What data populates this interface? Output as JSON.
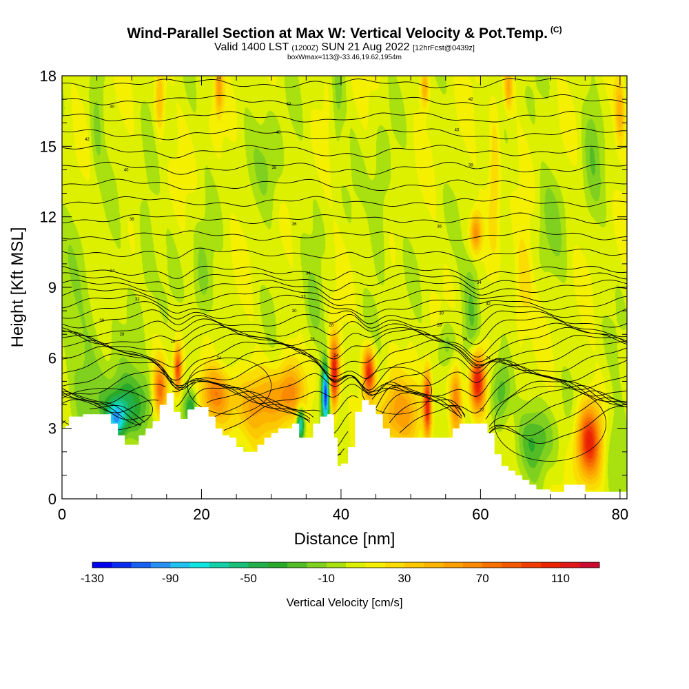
{
  "chart_data": {
    "type": "heatmap",
    "title": "Wind-Parallel Section at Max W: Vertical Velocity & Pot.Temp.",
    "title_badge": "(C)",
    "subtitle_prefix": "Valid 1400 LST",
    "subtitle_utc": "(1200Z)",
    "subtitle_date": "SUN 21 Aug 2022",
    "subtitle_fcst": "[12hrFcst@0439z]",
    "info_line": "boxWmax=113@-33.46,19.62,1954m",
    "xlabel": "Distance [nm]",
    "ylabel": "Height [Kft MSL]",
    "xlim": [
      0,
      81
    ],
    "ylim": [
      0,
      18
    ],
    "x_ticks": [
      0,
      20,
      40,
      60,
      80
    ],
    "y_ticks": [
      0,
      3,
      6,
      9,
      12,
      15,
      18
    ],
    "colorbar": {
      "title": "Vertical Velocity [cm/s]",
      "min": -130,
      "max": 130,
      "step": 10,
      "tick_values": [
        "-130",
        "-90",
        "-50",
        "-10",
        "30",
        "70",
        "110"
      ],
      "colors": [
        "#0000ee",
        "#0a2bf0",
        "#1860f2",
        "#2490f4",
        "#21c2f0",
        "#10e4e0",
        "#14d0a8",
        "#18c07a",
        "#22b04a",
        "#2aa82a",
        "#52bc26",
        "#80d020",
        "#a8e010",
        "#ddf000",
        "#f4f000",
        "#fadc00",
        "#fcc800",
        "#fcb400",
        "#fca000",
        "#fc8a00",
        "#f87000",
        "#f45800",
        "#f03c00",
        "#ea2400",
        "#e01818",
        "#cc0a30"
      ]
    },
    "terrain_kft": [
      [
        0,
        3.0
      ],
      [
        0.5,
        3.1
      ],
      [
        1,
        3.5
      ],
      [
        3,
        3.6
      ],
      [
        6,
        3.6
      ],
      [
        7,
        3.2
      ],
      [
        8,
        2.7
      ],
      [
        9,
        2.3
      ],
      [
        10,
        2.3
      ],
      [
        11,
        2.7
      ],
      [
        12,
        3.0
      ],
      [
        13,
        3.3
      ],
      [
        14,
        4.0
      ],
      [
        15,
        4.5
      ],
      [
        15.5,
        4.5
      ],
      [
        16,
        3.7
      ],
      [
        17,
        3.4
      ],
      [
        18,
        3.8
      ],
      [
        19,
        3.9
      ],
      [
        20,
        3.9
      ],
      [
        21,
        3.5
      ],
      [
        22,
        3.0
      ],
      [
        23,
        2.7
      ],
      [
        24,
        2.6
      ],
      [
        25,
        2.2
      ],
      [
        26,
        2.0
      ],
      [
        27,
        2.0
      ],
      [
        28,
        2.3
      ],
      [
        29,
        2.6
      ],
      [
        30,
        2.8
      ],
      [
        31,
        3.0
      ],
      [
        32,
        3.0
      ],
      [
        33,
        3.2
      ],
      [
        34,
        2.6
      ],
      [
        35,
        2.6
      ],
      [
        36,
        3.2
      ],
      [
        37,
        3.5
      ],
      [
        38,
        3.6
      ],
      [
        39,
        2.6
      ],
      [
        39.5,
        1.4
      ],
      [
        40,
        1.5
      ],
      [
        41,
        2.2
      ],
      [
        42,
        3.7
      ],
      [
        43,
        4.2
      ],
      [
        44,
        4.0
      ],
      [
        45,
        3.6
      ],
      [
        46,
        3.0
      ],
      [
        47,
        2.6
      ],
      [
        50,
        2.6
      ],
      [
        52,
        2.6
      ],
      [
        54,
        2.6
      ],
      [
        55,
        2.6
      ],
      [
        56,
        3.0
      ],
      [
        57,
        3.2
      ],
      [
        60,
        3.2
      ],
      [
        61,
        2.8
      ],
      [
        62,
        1.9
      ],
      [
        63,
        1.4
      ],
      [
        64,
        1.2
      ],
      [
        65,
        1.0
      ],
      [
        66,
        0.8
      ],
      [
        67,
        0.6
      ],
      [
        68,
        0.4
      ],
      [
        70,
        0.3
      ],
      [
        71,
        0.3
      ],
      [
        72,
        0.6
      ],
      [
        74,
        0.6
      ],
      [
        75,
        0.3
      ],
      [
        78,
        0.3
      ],
      [
        80,
        0.3
      ],
      [
        81,
        0.3
      ]
    ],
    "updrafts": [
      {
        "x": 75.5,
        "z": 2.4,
        "sx": 1.2,
        "sz": 1.1,
        "w": 100
      },
      {
        "x": 59.6,
        "z": 5.0,
        "sx": 0.8,
        "sz": 0.9,
        "w": 115
      },
      {
        "x": 59.3,
        "z": 11.3,
        "sx": 0.6,
        "sz": 0.6,
        "w": 60
      },
      {
        "x": 58.8,
        "z": 8.5,
        "sx": 0.9,
        "sz": 1.8,
        "w": -25
      },
      {
        "x": 39.0,
        "z": 5.3,
        "sx": 0.5,
        "sz": 1.0,
        "w": 118
      },
      {
        "x": 44.0,
        "z": 5.4,
        "sx": 0.6,
        "sz": 0.7,
        "w": 100
      },
      {
        "x": 52.4,
        "z": 4.0,
        "sx": 0.4,
        "sz": 1.0,
        "w": 95
      },
      {
        "x": 48.5,
        "z": 3.6,
        "sx": 2.5,
        "sz": 1.0,
        "w": 45
      },
      {
        "x": 56.5,
        "z": 4.2,
        "sx": 0.6,
        "sz": 1.0,
        "w": 60
      },
      {
        "x": 28.0,
        "z": 4.0,
        "sx": 3.5,
        "sz": 1.0,
        "w": 40
      },
      {
        "x": 22.0,
        "z": 4.5,
        "sx": 1.5,
        "sz": 0.8,
        "w": 55
      },
      {
        "x": 14.0,
        "z": 4.6,
        "sx": 0.7,
        "sz": 0.8,
        "w": 75
      },
      {
        "x": 16.6,
        "z": 5.5,
        "sx": 0.4,
        "sz": 0.7,
        "w": 90
      },
      {
        "x": 10.0,
        "z": 4.0,
        "sx": 3.0,
        "sz": 1.0,
        "w": -40
      },
      {
        "x": 7.8,
        "z": 3.4,
        "sx": 1.0,
        "sz": 0.6,
        "w": -80
      },
      {
        "x": 37.8,
        "z": 4.4,
        "sx": 0.4,
        "sz": 0.9,
        "w": -120
      },
      {
        "x": 34.2,
        "z": 3.2,
        "sx": 0.4,
        "sz": 0.5,
        "w": -90
      },
      {
        "x": 32.5,
        "z": 4.5,
        "sx": 1.5,
        "sz": 0.8,
        "w": 45
      },
      {
        "x": 18.5,
        "z": 3.9,
        "sx": 0.6,
        "sz": 0.5,
        "w": -45
      },
      {
        "x": 3.0,
        "z": 6.5,
        "sx": 3.0,
        "sz": 3.0,
        "w": -15
      },
      {
        "x": 63.0,
        "z": 4.5,
        "sx": 1.0,
        "sz": 1.0,
        "w": -40
      },
      {
        "x": 68.0,
        "z": 2.5,
        "sx": 2.0,
        "sz": 1.0,
        "w": -30
      },
      {
        "x": 79.0,
        "z": 2.0,
        "sx": 1.0,
        "sz": 1.5,
        "w": -20
      },
      {
        "x": 66.0,
        "z": 9.0,
        "sx": 1.0,
        "sz": 1.5,
        "w": 25
      },
      {
        "x": 62.0,
        "z": 14.0,
        "sx": 0.6,
        "sz": 2.0,
        "w": 30
      },
      {
        "x": 14.0,
        "z": 17.0,
        "sx": 0.5,
        "sz": 1.0,
        "w": 40
      },
      {
        "x": 22.5,
        "z": 17.5,
        "sx": 0.4,
        "sz": 0.8,
        "w": 45
      },
      {
        "x": 52.0,
        "z": 17.5,
        "sx": 0.4,
        "sz": 0.6,
        "w": 45
      },
      {
        "x": 64.0,
        "z": 17.5,
        "sx": 0.4,
        "sz": 0.7,
        "w": 40
      },
      {
        "x": 80.0,
        "z": 16.5,
        "sx": 0.5,
        "sz": 1.0,
        "w": 40
      },
      {
        "x": 39.5,
        "z": 17.0,
        "sx": 0.6,
        "sz": 1.5,
        "w": -20
      },
      {
        "x": 5.0,
        "z": 16.0,
        "sx": 0.7,
        "sz": 1.5,
        "w": -20
      },
      {
        "x": 30.0,
        "z": 14.0,
        "sx": 1.5,
        "sz": 1.5,
        "w": -18
      },
      {
        "x": 45.5,
        "z": 12.0,
        "sx": 1.0,
        "sz": 2.0,
        "w": -20
      },
      {
        "x": 70.0,
        "z": 12.0,
        "sx": 1.5,
        "sz": 1.5,
        "w": -15
      },
      {
        "x": 76.0,
        "z": 15.0,
        "sx": 1.0,
        "sz": 2.0,
        "w": -18
      },
      {
        "x": 12.0,
        "z": 11.0,
        "sx": 1.0,
        "sz": 2.0,
        "w": -18
      },
      {
        "x": 20.0,
        "z": 9.0,
        "sx": 1.0,
        "sz": 1.5,
        "w": -22
      },
      {
        "x": 36.0,
        "z": 8.0,
        "sx": 1.0,
        "sz": 1.2,
        "w": -20
      },
      {
        "x": 55.0,
        "z": 6.5,
        "sx": 1.0,
        "sz": 0.8,
        "w": -25
      }
    ],
    "contour_labels": [
      {
        "x": 22.5,
        "z": 17.9,
        "text": "44"
      },
      {
        "x": 32.5,
        "z": 16.8,
        "text": "42"
      },
      {
        "x": 58.6,
        "z": 17.0,
        "text": "42"
      },
      {
        "x": 7.2,
        "z": 16.7,
        "text": "40"
      },
      {
        "x": 31.0,
        "z": 15.6,
        "text": "40"
      },
      {
        "x": 56.6,
        "z": 15.7,
        "text": "40"
      },
      {
        "x": 3.6,
        "z": 15.3,
        "text": "42"
      },
      {
        "x": 9.2,
        "z": 14.0,
        "text": "40"
      },
      {
        "x": 30.4,
        "z": 14.1,
        "text": "38"
      },
      {
        "x": 58.6,
        "z": 14.2,
        "text": "38"
      },
      {
        "x": 10.0,
        "z": 11.9,
        "text": "36"
      },
      {
        "x": 33.3,
        "z": 11.7,
        "text": "36"
      },
      {
        "x": 54.1,
        "z": 11.6,
        "text": "36"
      },
      {
        "x": 7.2,
        "z": 9.7,
        "text": "34"
      },
      {
        "x": 35.3,
        "z": 9.6,
        "text": "34"
      },
      {
        "x": 59.8,
        "z": 9.2,
        "text": "34"
      },
      {
        "x": 10.8,
        "z": 8.5,
        "text": "32"
      },
      {
        "x": 34.6,
        "z": 8.6,
        "text": "32"
      },
      {
        "x": 61.1,
        "z": 8.3,
        "text": "32"
      },
      {
        "x": 5.7,
        "z": 7.6,
        "text": "30"
      },
      {
        "x": 33.3,
        "z": 8.0,
        "text": "30"
      },
      {
        "x": 54.4,
        "z": 7.9,
        "text": "30"
      },
      {
        "x": 8.6,
        "z": 7.0,
        "text": "28"
      },
      {
        "x": 38.6,
        "z": 7.4,
        "text": "28"
      },
      {
        "x": 54.1,
        "z": 7.4,
        "text": "28"
      },
      {
        "x": 35.9,
        "z": 6.8,
        "text": "26"
      },
      {
        "x": 57.8,
        "z": 6.8,
        "text": "26"
      },
      {
        "x": 15.9,
        "z": 6.7,
        "text": "28"
      },
      {
        "x": 22.5,
        "z": 6.0,
        "text": "24"
      },
      {
        "x": 39.3,
        "z": 6.1,
        "text": "24"
      },
      {
        "x": 61.1,
        "z": 6.0,
        "text": "24"
      },
      {
        "x": 60.2,
        "z": 3.8,
        "text": "22"
      }
    ]
  }
}
